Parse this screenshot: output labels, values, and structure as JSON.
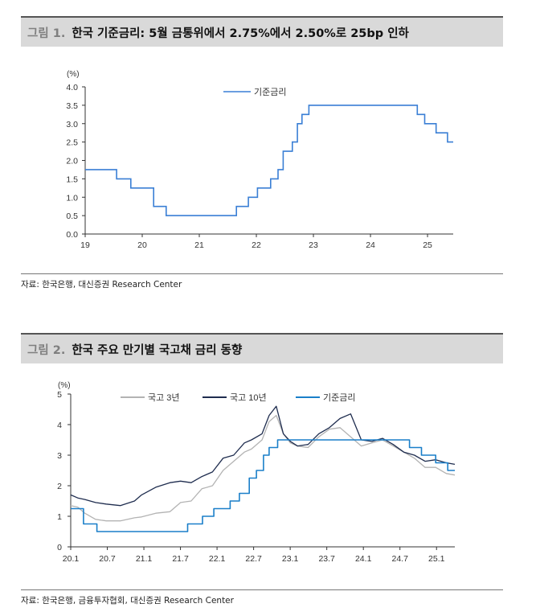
{
  "figure1": {
    "num": "그림 1.",
    "title": "한국 기준금리: 5월 금통위에서 2.75%에서 2.50%로 25bp 인하",
    "source": "자료: 한국은행, 대신증권 Research Center",
    "colors": {
      "series": "#3a7fd5",
      "axis": "#333333"
    },
    "chart_data": {
      "type": "line",
      "title": "한국 기준금리: 5월 금통위에서 2.75%에서 2.50%로 25bp 인하",
      "yunit": "(%)",
      "ylim": [
        0.0,
        4.0
      ],
      "yticks": [
        "4.0",
        "3.5",
        "3.0",
        "2.5",
        "2.0",
        "1.5",
        "1.0",
        "0.5",
        "0.0"
      ],
      "xlim": [
        19.0,
        25.45
      ],
      "xticks": [
        "19",
        "20",
        "21",
        "22",
        "23",
        "24",
        "25"
      ],
      "series": [
        {
          "name": "기준금리",
          "step": true,
          "x": [
            19.0,
            19.55,
            19.8,
            20.2,
            20.42,
            21.65,
            21.86,
            22.02,
            22.25,
            22.38,
            22.47,
            22.63,
            22.72,
            22.8,
            22.92,
            23.05,
            24.82,
            24.95,
            25.15,
            25.35,
            25.45
          ],
          "y": [
            1.75,
            1.5,
            1.25,
            0.75,
            0.5,
            0.75,
            1.0,
            1.25,
            1.5,
            1.75,
            2.25,
            2.5,
            3.0,
            3.25,
            3.5,
            3.5,
            3.25,
            3.0,
            2.75,
            2.5,
            2.5
          ]
        }
      ]
    }
  },
  "figure2": {
    "num": "그림 2.",
    "title": "한국 주요 만기별 국고채 금리 동향",
    "source": "자료: 한국은행, 금융투자협회, 대신증권 Research Center",
    "colors": {
      "bond3y": "#b3b3b3",
      "bond10y": "#1f2d4f",
      "base": "#1a7fc9"
    },
    "chart_data": {
      "type": "line",
      "title": "한국 주요 만기별 국고채 금리 동향",
      "yunit": "(%)",
      "ylim": [
        0,
        5
      ],
      "yticks": [
        "5",
        "4",
        "3",
        "2",
        "1",
        "0"
      ],
      "xlim": [
        2020.0,
        2025.42
      ],
      "xticks": [
        "20.1",
        "20.7",
        "21.1",
        "21.7",
        "22.1",
        "22.7",
        "23.1",
        "23.7",
        "24.1",
        "24.7",
        "25.1"
      ],
      "legend_position": "top",
      "series": [
        {
          "name": "국고 3년",
          "x": [
            2020.0,
            2020.1,
            2020.2,
            2020.35,
            2020.5,
            2020.7,
            2020.9,
            2021.0,
            2021.2,
            2021.4,
            2021.55,
            2021.7,
            2021.85,
            2022.0,
            2022.15,
            2022.3,
            2022.45,
            2022.55,
            2022.7,
            2022.8,
            2022.9,
            2023.0,
            2023.1,
            2023.2,
            2023.35,
            2023.5,
            2023.65,
            2023.8,
            2023.95,
            2024.1,
            2024.25,
            2024.4,
            2024.55,
            2024.7,
            2024.85,
            2025.0,
            2025.15,
            2025.3,
            2025.42
          ],
          "y": [
            1.35,
            1.3,
            1.1,
            0.9,
            0.85,
            0.85,
            0.95,
            0.98,
            1.1,
            1.15,
            1.45,
            1.5,
            1.9,
            2.0,
            2.5,
            2.8,
            3.1,
            3.2,
            3.5,
            4.1,
            4.3,
            3.7,
            3.4,
            3.3,
            3.25,
            3.6,
            3.85,
            3.9,
            3.6,
            3.3,
            3.4,
            3.5,
            3.3,
            3.1,
            2.9,
            2.6,
            2.6,
            2.4,
            2.35
          ]
        },
        {
          "name": "국고 10년",
          "x": [
            2020.0,
            2020.1,
            2020.2,
            2020.35,
            2020.5,
            2020.7,
            2020.9,
            2021.0,
            2021.2,
            2021.4,
            2021.55,
            2021.7,
            2021.85,
            2022.0,
            2022.15,
            2022.3,
            2022.45,
            2022.55,
            2022.7,
            2022.8,
            2022.9,
            2023.0,
            2023.1,
            2023.2,
            2023.35,
            2023.5,
            2023.65,
            2023.8,
            2023.95,
            2024.1,
            2024.25,
            2024.4,
            2024.55,
            2024.7,
            2024.85,
            2025.0,
            2025.15,
            2025.3,
            2025.42
          ],
          "y": [
            1.7,
            1.6,
            1.55,
            1.45,
            1.4,
            1.35,
            1.5,
            1.7,
            1.95,
            2.1,
            2.15,
            2.1,
            2.3,
            2.45,
            2.9,
            3.0,
            3.4,
            3.5,
            3.7,
            4.3,
            4.6,
            3.7,
            3.45,
            3.3,
            3.35,
            3.7,
            3.9,
            4.2,
            4.35,
            3.5,
            3.45,
            3.55,
            3.35,
            3.1,
            3.0,
            2.8,
            2.85,
            2.75,
            2.7
          ]
        },
        {
          "name": "기준금리",
          "step": true,
          "x": [
            2020.0,
            2020.18,
            2020.37,
            2021.65,
            2021.86,
            2022.02,
            2022.25,
            2022.38,
            2022.52,
            2022.62,
            2022.72,
            2022.8,
            2022.92,
            2023.05,
            2024.78,
            2024.95,
            2025.15,
            2025.32,
            2025.42
          ],
          "y": [
            1.25,
            0.75,
            0.5,
            0.75,
            1.0,
            1.25,
            1.5,
            1.75,
            2.25,
            2.5,
            3.0,
            3.25,
            3.5,
            3.5,
            3.25,
            3.0,
            2.75,
            2.5,
            2.5
          ]
        }
      ]
    }
  }
}
